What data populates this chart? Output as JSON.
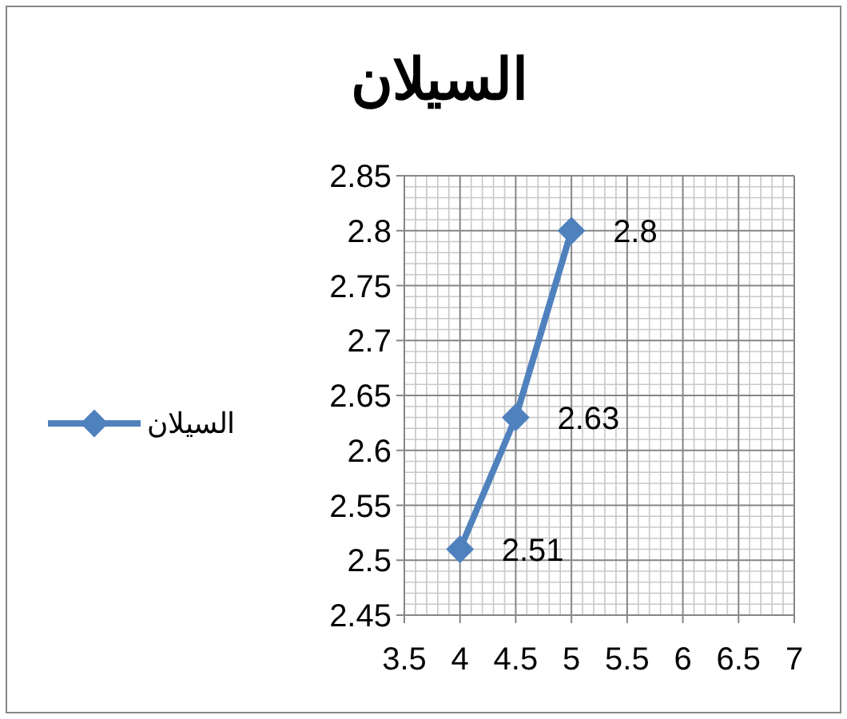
{
  "chart_data": {
    "type": "line",
    "title": "السيلان",
    "x": [
      4,
      4.5,
      5
    ],
    "series": [
      {
        "name": "السيلان",
        "color": "#4f81bd",
        "values": [
          2.51,
          2.63,
          2.8
        ]
      }
    ],
    "xlim": [
      3.5,
      7
    ],
    "xticks": [
      3.5,
      4,
      4.5,
      5,
      5.5,
      6,
      6.5,
      7
    ],
    "ylim": [
      2.45,
      2.85
    ],
    "yticks": [
      2.45,
      2.5,
      2.55,
      2.6,
      2.65,
      2.7,
      2.75,
      2.8,
      2.85
    ],
    "grid": true,
    "legend": "left",
    "marker": "diamond",
    "line_style": "solid",
    "data_labels": true
  }
}
